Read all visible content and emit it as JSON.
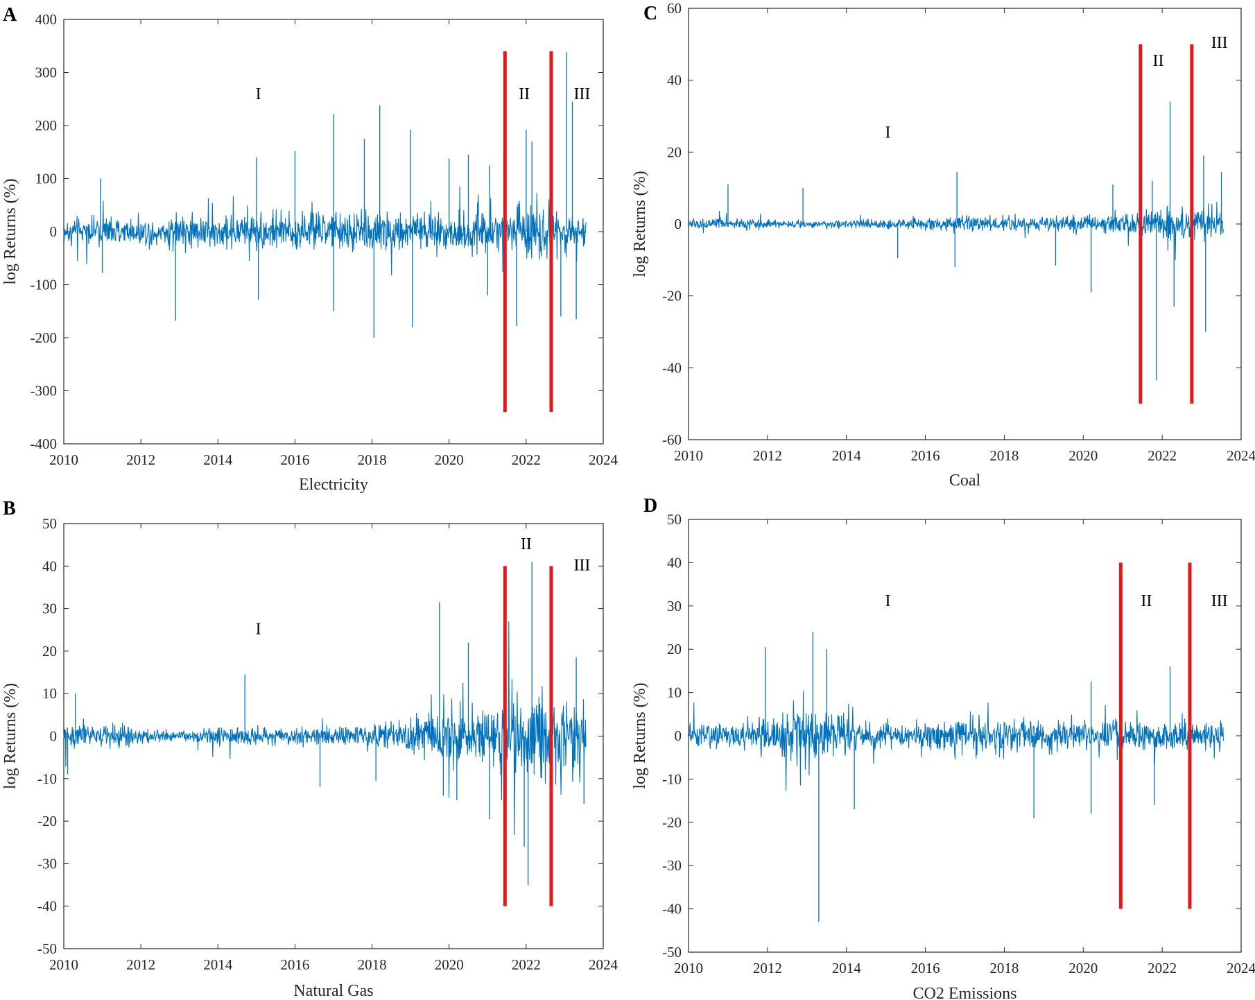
{
  "chart_data": [
    {
      "type": "line",
      "panel_label": "A",
      "xlabel": "Electricity",
      "ylabel": "log Returns (%)",
      "xlim": [
        2010,
        2024
      ],
      "ylim": [
        -400,
        400
      ],
      "xticks": [
        "2010",
        "2012",
        "2014",
        "2016",
        "2018",
        "2020",
        "2022",
        "2024"
      ],
      "yticks": [
        "-400",
        "-300",
        "-200",
        "-100",
        "0",
        "100",
        "200",
        "300",
        "400"
      ],
      "series_color": "#0072BD",
      "series": [
        {
          "data_end": 2023.55,
          "vol": [
            [
              2010,
              16
            ],
            [
              2012,
              20
            ],
            [
              2014,
              24
            ],
            [
              2016,
              26
            ],
            [
              2018,
              30
            ],
            [
              2020,
              32
            ],
            [
              2021.45,
              28
            ],
            [
              2022,
              40
            ],
            [
              2022.7,
              32
            ],
            [
              2023.55,
              24
            ]
          ],
          "spikes": [
            [
              2010.95,
              100
            ],
            [
              2011.0,
              -78
            ],
            [
              2012.9,
              -168
            ],
            [
              2015.0,
              140
            ],
            [
              2015.05,
              -128
            ],
            [
              2016.0,
              152
            ],
            [
              2017.0,
              222
            ],
            [
              2017.0,
              -150
            ],
            [
              2017.8,
              175
            ],
            [
              2018.05,
              -200
            ],
            [
              2018.2,
              238
            ],
            [
              2019.0,
              192
            ],
            [
              2019.05,
              -180
            ],
            [
              2020.0,
              138
            ],
            [
              2020.5,
              145
            ],
            [
              2021.05,
              125
            ],
            [
              2021.0,
              -120
            ],
            [
              2021.75,
              -178
            ],
            [
              2022.0,
              192
            ],
            [
              2022.15,
              170
            ],
            [
              2022.9,
              -160
            ],
            [
              2023.05,
              338
            ],
            [
              2023.2,
              245
            ],
            [
              2023.3,
              -165
            ]
          ]
        }
      ],
      "regimes": [
        {
          "x": 2021.45,
          "y_low": -340,
          "y_high": 340
        },
        {
          "x": 2022.65,
          "y_low": -340,
          "y_high": 340
        }
      ],
      "annotations": [
        {
          "text": "I",
          "x": 2015.05,
          "y": 250
        },
        {
          "text": "II",
          "x": 2021.95,
          "y": 250
        },
        {
          "text": "III",
          "x": 2023.45,
          "y": 250
        }
      ]
    },
    {
      "type": "line",
      "panel_label": "B",
      "xlabel": "Natural Gas",
      "ylabel": "log Returns (%)",
      "xlim": [
        2010,
        2024
      ],
      "ylim": [
        -50,
        50
      ],
      "xticks": [
        "2010",
        "2012",
        "2014",
        "2016",
        "2018",
        "2020",
        "2022",
        "2024"
      ],
      "yticks": [
        "-50",
        "-40",
        "-30",
        "-20",
        "-10",
        "0",
        "10",
        "20",
        "30",
        "40",
        "50"
      ],
      "series_color": "#0072BD",
      "series": [
        {
          "data_end": 2023.55,
          "vol": [
            [
              2010,
              2.4
            ],
            [
              2012,
              1.6
            ],
            [
              2013,
              0.8
            ],
            [
              2014,
              1.6
            ],
            [
              2016,
              1.4
            ],
            [
              2018,
              1.8
            ],
            [
              2019.2,
              3.5
            ],
            [
              2020,
              5
            ],
            [
              2021,
              5
            ],
            [
              2021.45,
              6
            ],
            [
              2022,
              9.5
            ],
            [
              2022.6,
              8
            ],
            [
              2023.55,
              6
            ]
          ],
          "spikes": [
            [
              2010.3,
              10
            ],
            [
              2010.1,
              -9
            ],
            [
              2014.7,
              14.5
            ],
            [
              2016.65,
              -12
            ],
            [
              2018.1,
              -10.5
            ],
            [
              2019.75,
              31.5
            ],
            [
              2019.85,
              -14
            ],
            [
              2020.2,
              -15
            ],
            [
              2020.5,
              22
            ],
            [
              2021.05,
              -19.5
            ],
            [
              2022.15,
              41
            ],
            [
              2022.05,
              -35
            ],
            [
              2021.95,
              -26
            ],
            [
              2023.3,
              18.5
            ],
            [
              2023.5,
              -16
            ]
          ]
        }
      ],
      "regimes": [
        {
          "x": 2021.45,
          "y_low": -40,
          "y_high": 40
        },
        {
          "x": 2022.65,
          "y_low": -40,
          "y_high": 40
        }
      ],
      "annotations": [
        {
          "text": "I",
          "x": 2015.05,
          "y": 24
        },
        {
          "text": "II",
          "x": 2022.0,
          "y": 44
        },
        {
          "text": "III",
          "x": 2023.45,
          "y": 39
        }
      ]
    },
    {
      "type": "line",
      "panel_label": "C",
      "xlabel": "Coal",
      "ylabel": "log Returns (%)",
      "xlim": [
        2010,
        2024
      ],
      "ylim": [
        -60,
        60
      ],
      "xticks": [
        "2010",
        "2012",
        "2014",
        "2016",
        "2018",
        "2020",
        "2022",
        "2024"
      ],
      "yticks": [
        "-60",
        "-40",
        "-20",
        "0",
        "20",
        "40",
        "60"
      ],
      "series_color": "#0072BD",
      "series": [
        {
          "data_end": 2023.55,
          "vol": [
            [
              2010,
              1.2
            ],
            [
              2012,
              0.9
            ],
            [
              2014,
              0.8
            ],
            [
              2015.2,
              1.2
            ],
            [
              2016,
              1.4
            ],
            [
              2017,
              1.8
            ],
            [
              2019,
              1.5
            ],
            [
              2020,
              1.8
            ],
            [
              2021.45,
              2.4
            ],
            [
              2022,
              4
            ],
            [
              2022.8,
              3.5
            ],
            [
              2023.55,
              3
            ]
          ],
          "spikes": [
            [
              2011.0,
              11
            ],
            [
              2012.9,
              10
            ],
            [
              2015.3,
              -9.5
            ],
            [
              2016.8,
              14.5
            ],
            [
              2016.75,
              -12
            ],
            [
              2019.3,
              -11.5
            ],
            [
              2020.2,
              -19
            ],
            [
              2020.75,
              11
            ],
            [
              2021.75,
              12
            ],
            [
              2021.85,
              -43.5
            ],
            [
              2022.2,
              34
            ],
            [
              2022.3,
              -23
            ],
            [
              2023.05,
              19
            ],
            [
              2023.1,
              -30
            ],
            [
              2023.5,
              14.5
            ]
          ]
        }
      ],
      "regimes": [
        {
          "x": 2021.45,
          "y_low": -50,
          "y_high": 50
        },
        {
          "x": 2022.75,
          "y_low": -50,
          "y_high": 50
        }
      ],
      "annotations": [
        {
          "text": "I",
          "x": 2015.05,
          "y": 24
        },
        {
          "text": "II",
          "x": 2021.9,
          "y": 44
        },
        {
          "text": "III",
          "x": 2023.45,
          "y": 49
        }
      ]
    },
    {
      "type": "line",
      "panel_label": "D",
      "xlabel": "CO2 Emissions",
      "ylabel": "log Returns (%)",
      "xlim": [
        2010,
        2024
      ],
      "ylim": [
        -50,
        50
      ],
      "xticks": [
        "2010",
        "2012",
        "2014",
        "2016",
        "2018",
        "2020",
        "2022",
        "2024"
      ],
      "yticks": [
        "-50",
        "-40",
        "-30",
        "-20",
        "-10",
        "0",
        "10",
        "20",
        "30",
        "40",
        "50"
      ],
      "series_color": "#0072BD",
      "series": [
        {
          "data_end": 2023.55,
          "vol": [
            [
              2010,
              1.8
            ],
            [
              2011.5,
              2.8
            ],
            [
              2013,
              5
            ],
            [
              2013.5,
              4
            ],
            [
              2014.5,
              2.4
            ],
            [
              2015.5,
              1.6
            ],
            [
              2016.2,
              3
            ],
            [
              2018,
              3
            ],
            [
              2019,
              2.4
            ],
            [
              2020,
              2.6
            ],
            [
              2021,
              2.5
            ],
            [
              2022,
              2.6
            ],
            [
              2023.55,
              2.2
            ]
          ],
          "spikes": [
            [
              2011.95,
              20.5
            ],
            [
              2013.15,
              24
            ],
            [
              2013.3,
              -43
            ],
            [
              2013.5,
              20
            ],
            [
              2014.2,
              -17
            ],
            [
              2018.75,
              -19
            ],
            [
              2020.2,
              -18
            ],
            [
              2020.2,
              12.5
            ],
            [
              2021.8,
              -16
            ],
            [
              2022.2,
              16
            ]
          ]
        }
      ],
      "regimes": [
        {
          "x": 2020.95,
          "y_low": -40,
          "y_high": 40
        },
        {
          "x": 2022.7,
          "y_low": -40,
          "y_high": 40
        }
      ],
      "annotations": [
        {
          "text": "I",
          "x": 2015.05,
          "y": 30
        },
        {
          "text": "II",
          "x": 2021.6,
          "y": 30
        },
        {
          "text": "III",
          "x": 2023.45,
          "y": 30
        }
      ]
    }
  ]
}
